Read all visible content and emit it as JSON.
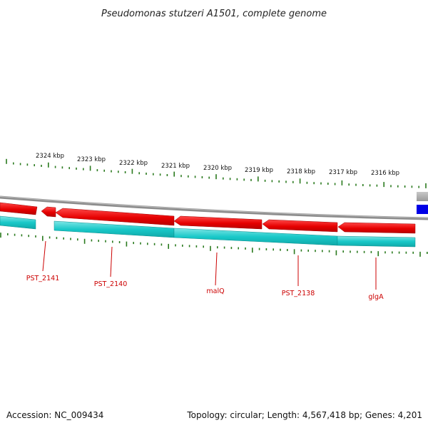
{
  "title": "Pseudomonas stutzeri A1501, complete genome",
  "footer": {
    "accession": "Accession: NC_009434",
    "summary": "Topology: circular; Length: 4,567,418 bp; Genes: 4,201"
  },
  "colors": {
    "background": "#ffffff",
    "backbone": "#8c8c8c",
    "forward_feature": "#e60000",
    "reverse_feature": "#19c8c8",
    "tick": "#2a7a1e",
    "label": "#cc0000",
    "legend_gray": "#b4b4b4",
    "legend_blue": "#0000e6"
  },
  "scale_labels": [
    "2324 kbp",
    "2323 kbp",
    "2322 kbp",
    "2321 kbp",
    "2320 kbp",
    "2319 kbp",
    "2318 kbp",
    "2317 kbp",
    "2316 kbp"
  ],
  "gene_labels": [
    "PST_2141",
    "PST_2140",
    "malQ",
    "PST_2138",
    "glgA"
  ]
}
